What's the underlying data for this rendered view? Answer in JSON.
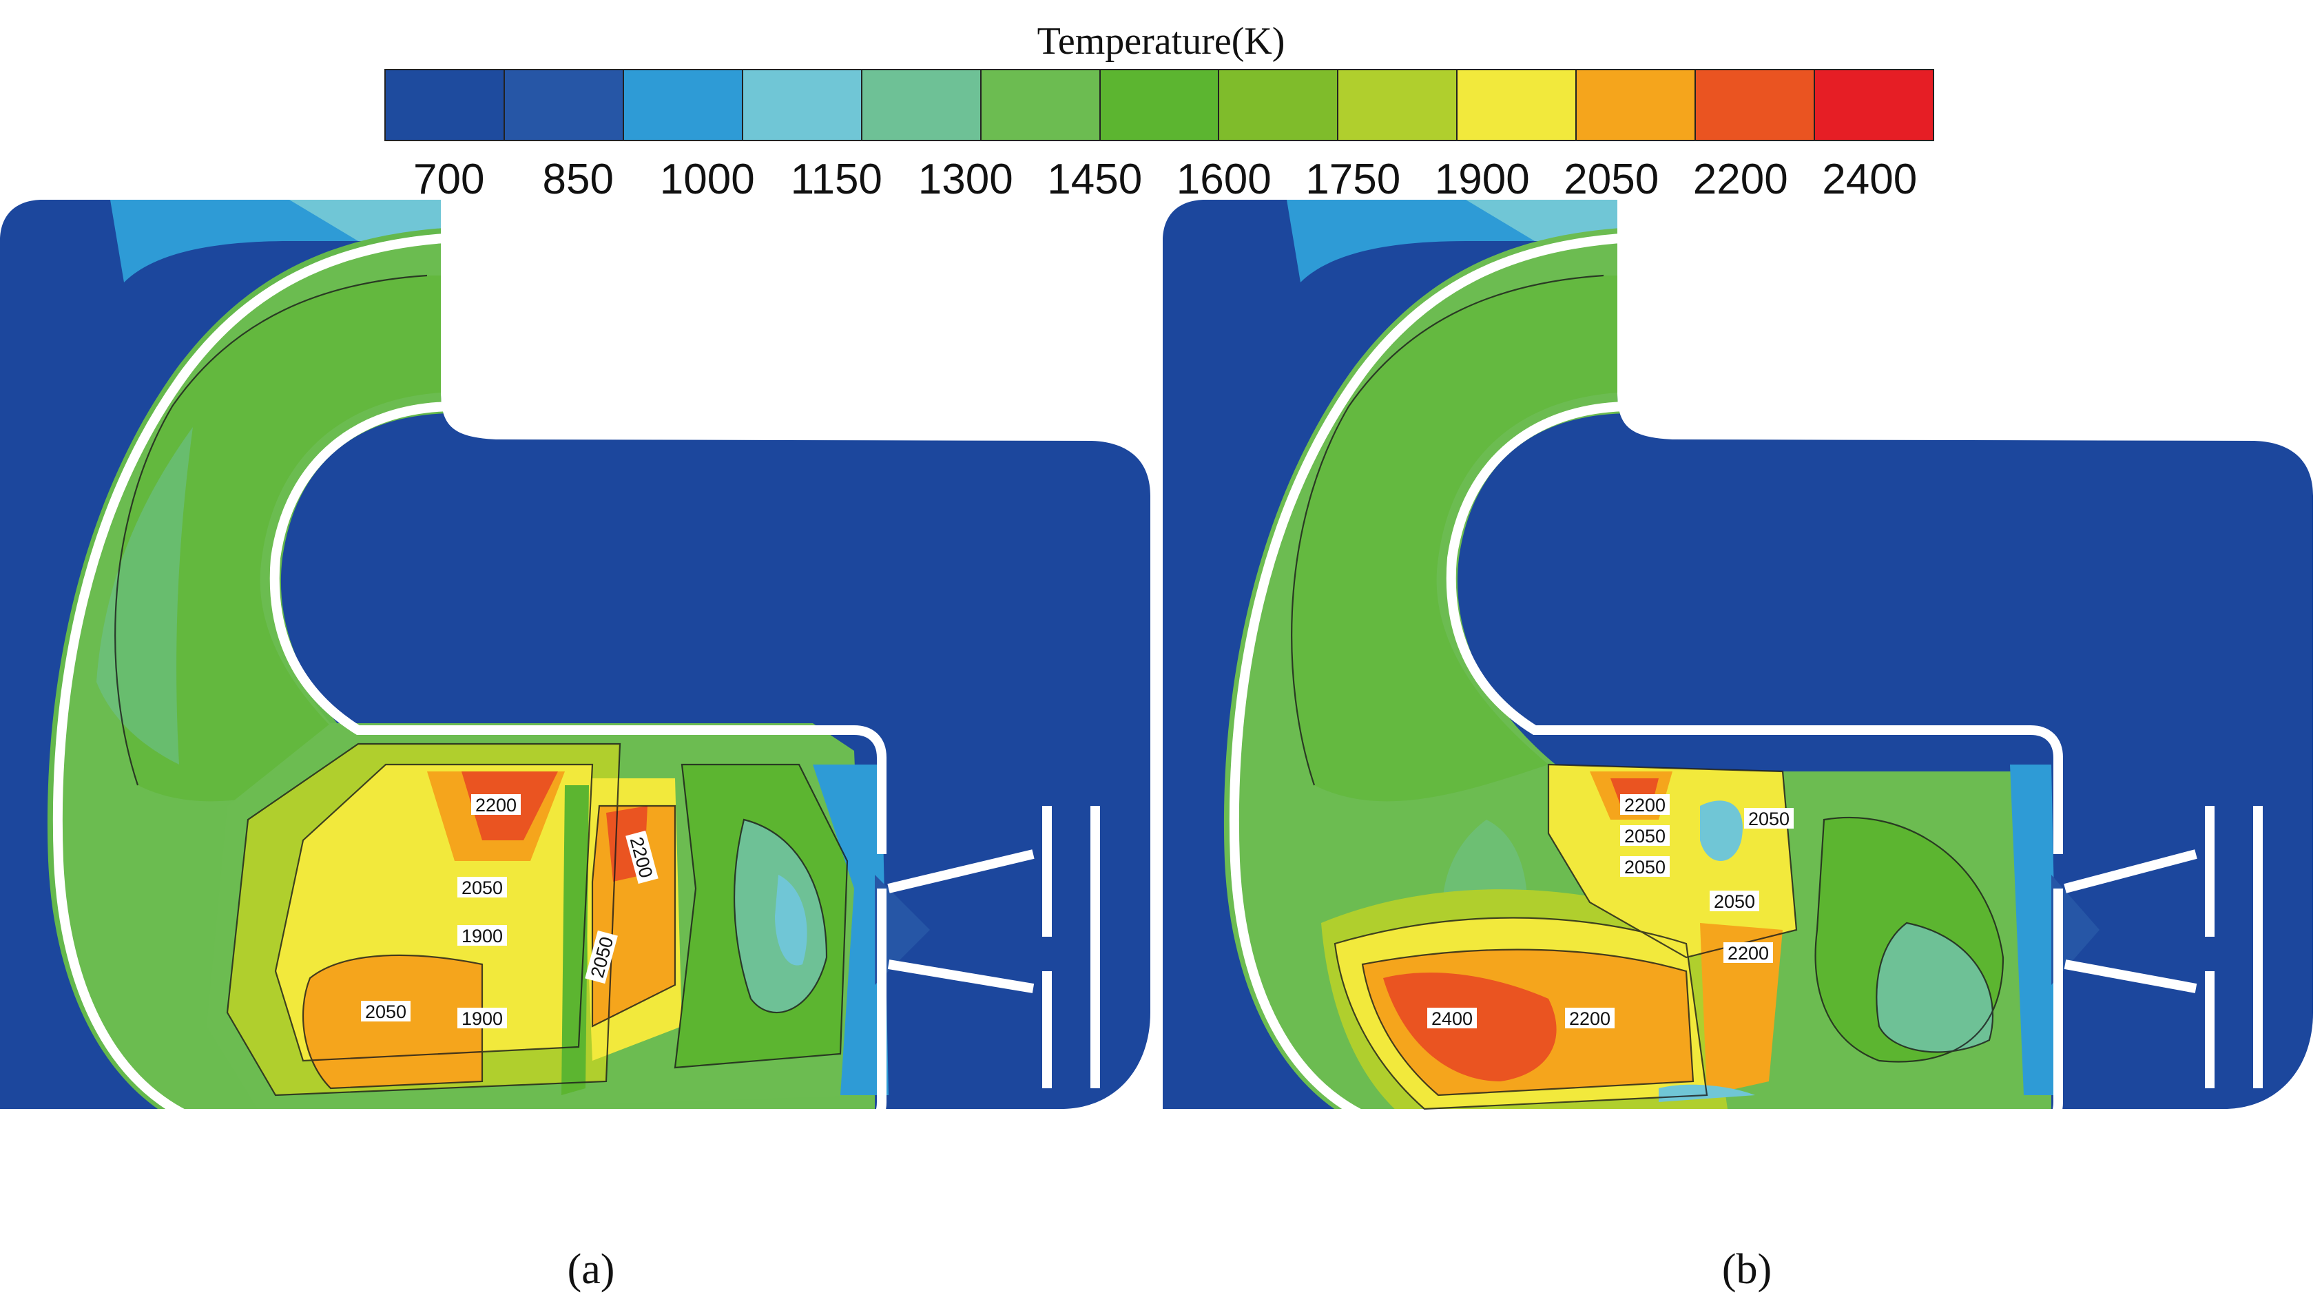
{
  "legend": {
    "title": "Temperature(K)",
    "colors": [
      "#1e4b9e",
      "#2656a6",
      "#2e9bd6",
      "#70c6d6",
      "#6ec196",
      "#6cbc51",
      "#5cb530",
      "#7fbc2b",
      "#b0cf2d",
      "#f2e93c",
      "#f5a51c",
      "#ea5421",
      "#e61e25"
    ],
    "ticks": [
      "700",
      "850",
      "1000",
      "1150",
      "1300",
      "1450",
      "1600",
      "1750",
      "1900",
      "2050",
      "2200",
      "2400"
    ]
  },
  "panels": [
    {
      "caption": "(a)",
      "contour_labels": [
        "2200",
        "2050",
        "2200",
        "1900",
        "2050",
        "1900",
        "2050"
      ]
    },
    {
      "caption": "(b)",
      "contour_labels": [
        "2200",
        "2050",
        "2050",
        "2050",
        "2050",
        "2200",
        "2400",
        "2200"
      ]
    }
  ]
}
